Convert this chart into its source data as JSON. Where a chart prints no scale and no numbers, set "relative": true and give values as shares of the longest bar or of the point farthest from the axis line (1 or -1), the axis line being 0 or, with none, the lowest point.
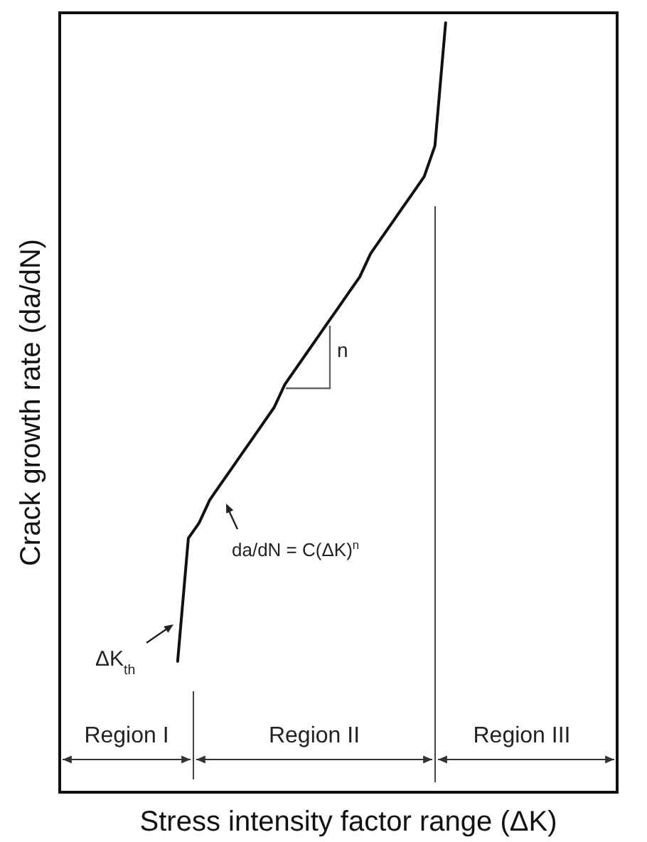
{
  "chart_data": {
    "type": "line",
    "relative": true,
    "xlabel": "Stress intensity factor range (ΔK)",
    "ylabel": "Crack growth rate (da/dN)",
    "categories": [
      null,
      null,
      null,
      null,
      null,
      null,
      null,
      null,
      null,
      null,
      null,
      null,
      null,
      null,
      null,
      null,
      null,
      null,
      null,
      null,
      null,
      null,
      null,
      null,
      null,
      null,
      null,
      null,
      null,
      null,
      null,
      null,
      null,
      null,
      null,
      null,
      null,
      null,
      null,
      null,
      null,
      null,
      null,
      null,
      null,
      null,
      null,
      null,
      null,
      null,
      null,
      null,
      null
    ],
    "series": [
      {
        "color": "#111111",
        "values": [
          null,
          null,
          null,
          null,
          null,
          null,
          null,
          null,
          null,
          null,
          null,
          0.17,
          0.33,
          0.35,
          0.38,
          0.4,
          0.42,
          0.44,
          0.46,
          0.48,
          0.5,
          0.53,
          0.55,
          0.57,
          0.59,
          0.61,
          0.63,
          0.65,
          0.67,
          0.7,
          0.72,
          0.74,
          0.76,
          0.78,
          0.8,
          0.84,
          1,
          null,
          null,
          null,
          null,
          null,
          null,
          null,
          null,
          null,
          null,
          null,
          null,
          null,
          null,
          null,
          null
        ]
      }
    ],
    "marker": "none",
    "line_style": "solid",
    "annotations": [
      "n",
      "da/dN = C(ΔK)$^{n}$",
      "ΔK$_{th}$",
      "Region I",
      "Region II",
      "Region III"
    ]
  }
}
